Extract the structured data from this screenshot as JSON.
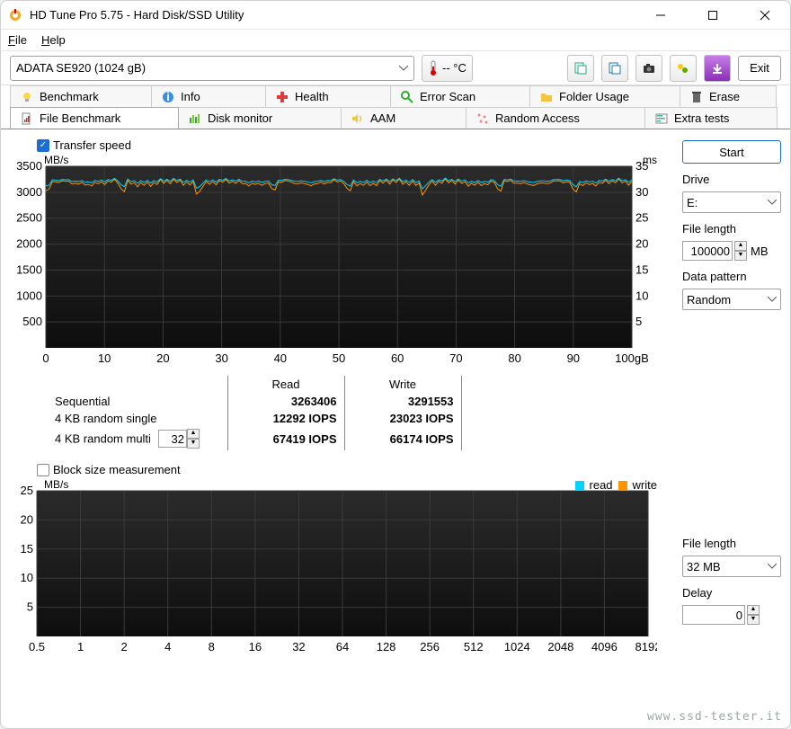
{
  "window": {
    "title": "HD Tune Pro 5.75 - Hard Disk/SSD Utility"
  },
  "menu": {
    "file": "File",
    "help": "Help"
  },
  "toolbar": {
    "drive": "ADATA SE920 (1024 gB)",
    "temp": "-- °C",
    "exit": "Exit"
  },
  "tabs_row1": [
    {
      "icon": "bulb",
      "label": "Benchmark"
    },
    {
      "icon": "info",
      "label": "Info"
    },
    {
      "icon": "health",
      "label": "Health"
    },
    {
      "icon": "scan",
      "label": "Error Scan"
    },
    {
      "icon": "folder",
      "label": "Folder Usage"
    },
    {
      "icon": "erase",
      "label": "Erase"
    }
  ],
  "tabs_row2": [
    {
      "icon": "filebm",
      "label": "File Benchmark",
      "active": true
    },
    {
      "icon": "diskmon",
      "label": "Disk monitor"
    },
    {
      "icon": "aam",
      "label": "AAM"
    },
    {
      "icon": "random",
      "label": "Random Access"
    },
    {
      "icon": "extra",
      "label": "Extra tests"
    }
  ],
  "transfer_label": "Transfer speed",
  "blocksize_label": "Block size measurement",
  "start_label": "Start",
  "drive_label": "Drive",
  "drive_value": "E:",
  "filelen_label": "File length",
  "filelen_value": "100000",
  "filelen_unit": "MB",
  "pattern_label": "Data pattern",
  "pattern_value": "Random",
  "filelen2_label": "File length",
  "filelen2_value": "32 MB",
  "delay_label": "Delay",
  "delay_value": "0",
  "chart1": {
    "left_axis_label": "MB/s",
    "right_axis_label": "ms",
    "y_left_ticks": [
      500,
      1000,
      1500,
      2000,
      2500,
      3000,
      3500
    ],
    "y_right_ticks": [
      5,
      10,
      15,
      20,
      25,
      30,
      35
    ],
    "x_ticks": [
      0,
      10,
      20,
      30,
      40,
      50,
      60,
      70,
      80,
      90,
      100
    ],
    "x_unit": "gB",
    "bg": "#1a1a1a",
    "grid": "#3a3a3a",
    "read_color": "#00d4ff",
    "write_color": "#ff9500",
    "read_baseline": 3220,
    "write_baseline": 3180,
    "ylim": [
      0,
      3500
    ]
  },
  "results": {
    "read_hdr": "Read",
    "write_hdr": "Write",
    "rows": [
      {
        "name": "Sequential",
        "read": "3263406",
        "write": "3291553"
      },
      {
        "name": "4 KB random single",
        "read": "12292 IOPS",
        "write": "23023 IOPS"
      },
      {
        "name": "4 KB random multi",
        "read": "67419 IOPS",
        "write": "66174 IOPS",
        "spin": "32"
      }
    ]
  },
  "chart2": {
    "left_axis_label": "MB/s",
    "y_ticks": [
      5,
      10,
      15,
      20,
      25
    ],
    "x_ticks": [
      "0.5",
      "1",
      "2",
      "4",
      "8",
      "16",
      "32",
      "64",
      "128",
      "256",
      "512",
      "1024",
      "2048",
      "4096",
      "8192"
    ],
    "bg": "#1a1a1a",
    "grid": "#3a3a3a",
    "read_color": "#00d4ff",
    "write_color": "#ff9500",
    "read_label": "read",
    "write_label": "write",
    "ylim": [
      0,
      25
    ]
  },
  "watermark": "www.ssd-tester.it"
}
